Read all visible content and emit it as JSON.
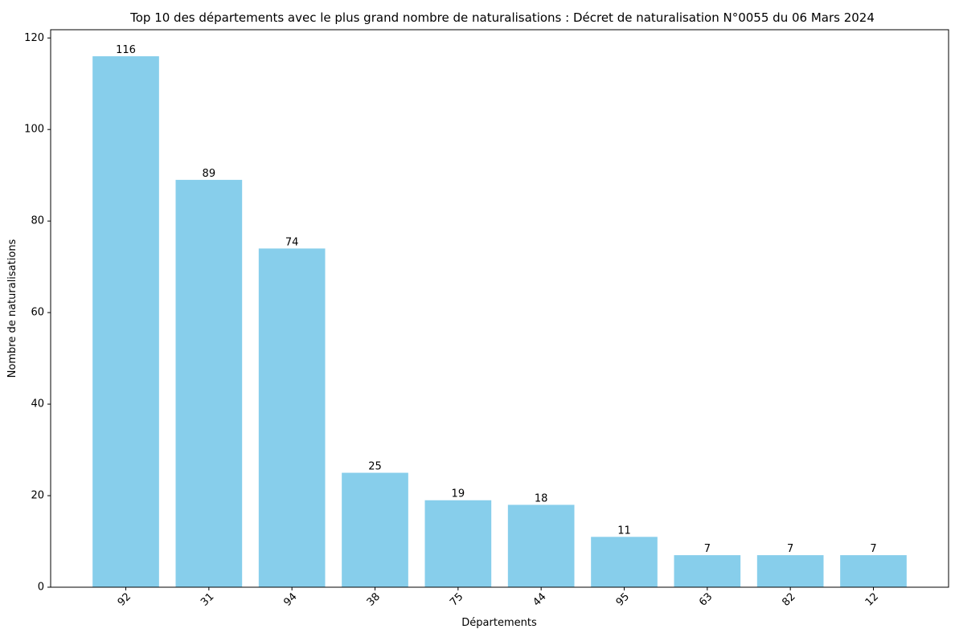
{
  "chart_data": {
    "type": "bar",
    "title": "Top 10 des départements avec le plus grand nombre de naturalisations : Décret de naturalisation N°0055 du 06 Mars 2024",
    "xlabel": "Départements",
    "ylabel": "Nombre de naturalisations",
    "categories": [
      "92",
      "31",
      "94",
      "38",
      "75",
      "44",
      "95",
      "63",
      "82",
      "12"
    ],
    "values": [
      116,
      89,
      74,
      25,
      19,
      18,
      11,
      7,
      7,
      7
    ],
    "data_labels": [
      "116",
      "89",
      "74",
      "25",
      "19",
      "18",
      "11",
      "7",
      "7",
      "7"
    ],
    "ylim": [
      0,
      121.8
    ],
    "yticks": [
      0,
      20,
      40,
      60,
      80,
      100,
      120
    ],
    "ytick_labels": [
      "0",
      "20",
      "40",
      "60",
      "80",
      "100",
      "120"
    ],
    "xtick_rotation": "45 degrees",
    "grid": false,
    "legend": "none",
    "bar_color": "#87ceeb"
  }
}
